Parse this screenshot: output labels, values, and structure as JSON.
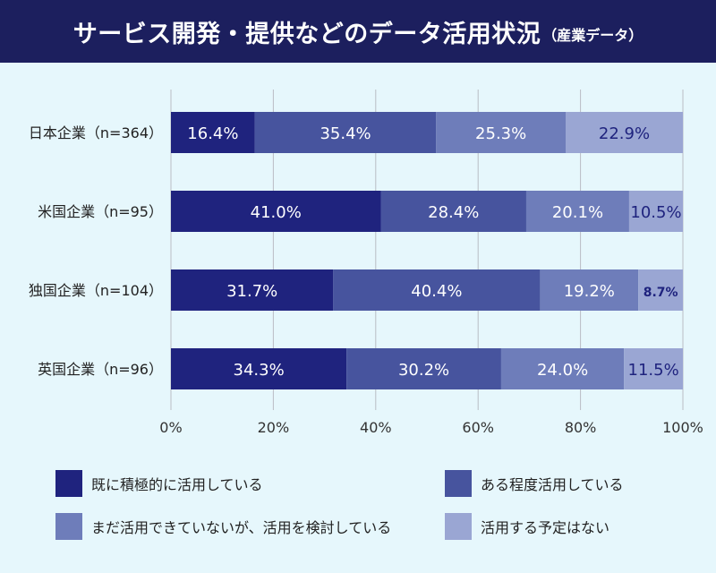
{
  "header": {
    "title": "サービス開発・提供などのデータ活用状況",
    "subtitle": "（産業データ）"
  },
  "colors": {
    "header_bg": "#1c1f5e",
    "background": "#e6f7fc",
    "series": [
      "#1f237e",
      "#47549e",
      "#6e7dba",
      "#9aa6d3"
    ],
    "label_light": "#ffffff",
    "label_dark": "#1f237e"
  },
  "chart_data": {
    "type": "bar",
    "orientation": "horizontal",
    "stacked": true,
    "categories": [
      "日本企業（n=364）",
      "米国企業（n=95）",
      "独国企業（n=104）",
      "英国企業（n=96）"
    ],
    "series": [
      {
        "name": "既に積極的に活用している",
        "values": [
          16.4,
          41.0,
          31.7,
          34.3
        ]
      },
      {
        "name": "ある程度活用している",
        "values": [
          35.4,
          28.4,
          40.4,
          30.2
        ]
      },
      {
        "name": "まだ活用できていないが、活用を検討している",
        "values": [
          25.3,
          20.1,
          19.2,
          24.0
        ]
      },
      {
        "name": "活用する予定はない",
        "values": [
          22.9,
          10.5,
          8.7,
          11.5
        ]
      }
    ],
    "value_labels": [
      [
        "16.4%",
        "41.0%",
        "31.7%",
        "34.3%"
      ],
      [
        "35.4%",
        "28.4%",
        "40.4%",
        "30.2%"
      ],
      [
        "25.3%",
        "20.1%",
        "19.2%",
        "24.0%"
      ],
      [
        "22.9%",
        "10.5%",
        "8.7%",
        "11.5%"
      ]
    ],
    "xlim": [
      0,
      100
    ],
    "xticks": [
      "0%",
      "20%",
      "40%",
      "60%",
      "80%",
      "100%"
    ],
    "grid": true,
    "legend_position": "bottom"
  }
}
